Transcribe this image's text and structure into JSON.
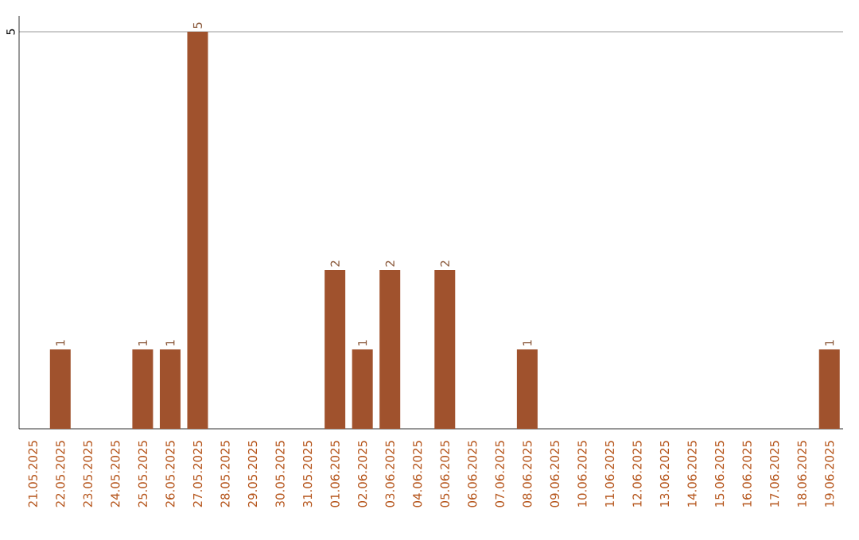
{
  "chart_data": {
    "type": "bar",
    "categories": [
      "21.05.2025",
      "22.05.2025",
      "23.05.2025",
      "24.05.2025",
      "25.05.2025",
      "26.05.2025",
      "27.05.2025",
      "28.05.2025",
      "29.05.2025",
      "30.05.2025",
      "31.05.2025",
      "01.06.2025",
      "02.06.2025",
      "03.06.2025",
      "04.06.2025",
      "05.06.2025",
      "06.06.2025",
      "07.06.2025",
      "08.06.2025",
      "09.06.2025",
      "10.06.2025",
      "11.06.2025",
      "12.06.2025",
      "13.06.2025",
      "14.06.2025",
      "15.06.2025",
      "16.06.2025",
      "17.06.2025",
      "18.06.2025",
      "19.06.2025"
    ],
    "values": [
      0,
      1,
      0,
      0,
      1,
      1,
      5,
      0,
      0,
      0,
      0,
      2,
      1,
      2,
      0,
      2,
      0,
      0,
      1,
      0,
      0,
      0,
      0,
      0,
      0,
      0,
      0,
      0,
      0,
      1
    ],
    "value_labels": [
      null,
      "1",
      null,
      null,
      "1",
      "1",
      "5",
      null,
      null,
      null,
      null,
      "2",
      "1",
      "2",
      null,
      "2",
      null,
      null,
      "1",
      null,
      null,
      null,
      null,
      null,
      null,
      null,
      null,
      null,
      null,
      "1"
    ],
    "color": "#a0522d",
    "ylim": [
      0,
      5.2
    ],
    "yticks": [
      5
    ],
    "grid": "y"
  }
}
